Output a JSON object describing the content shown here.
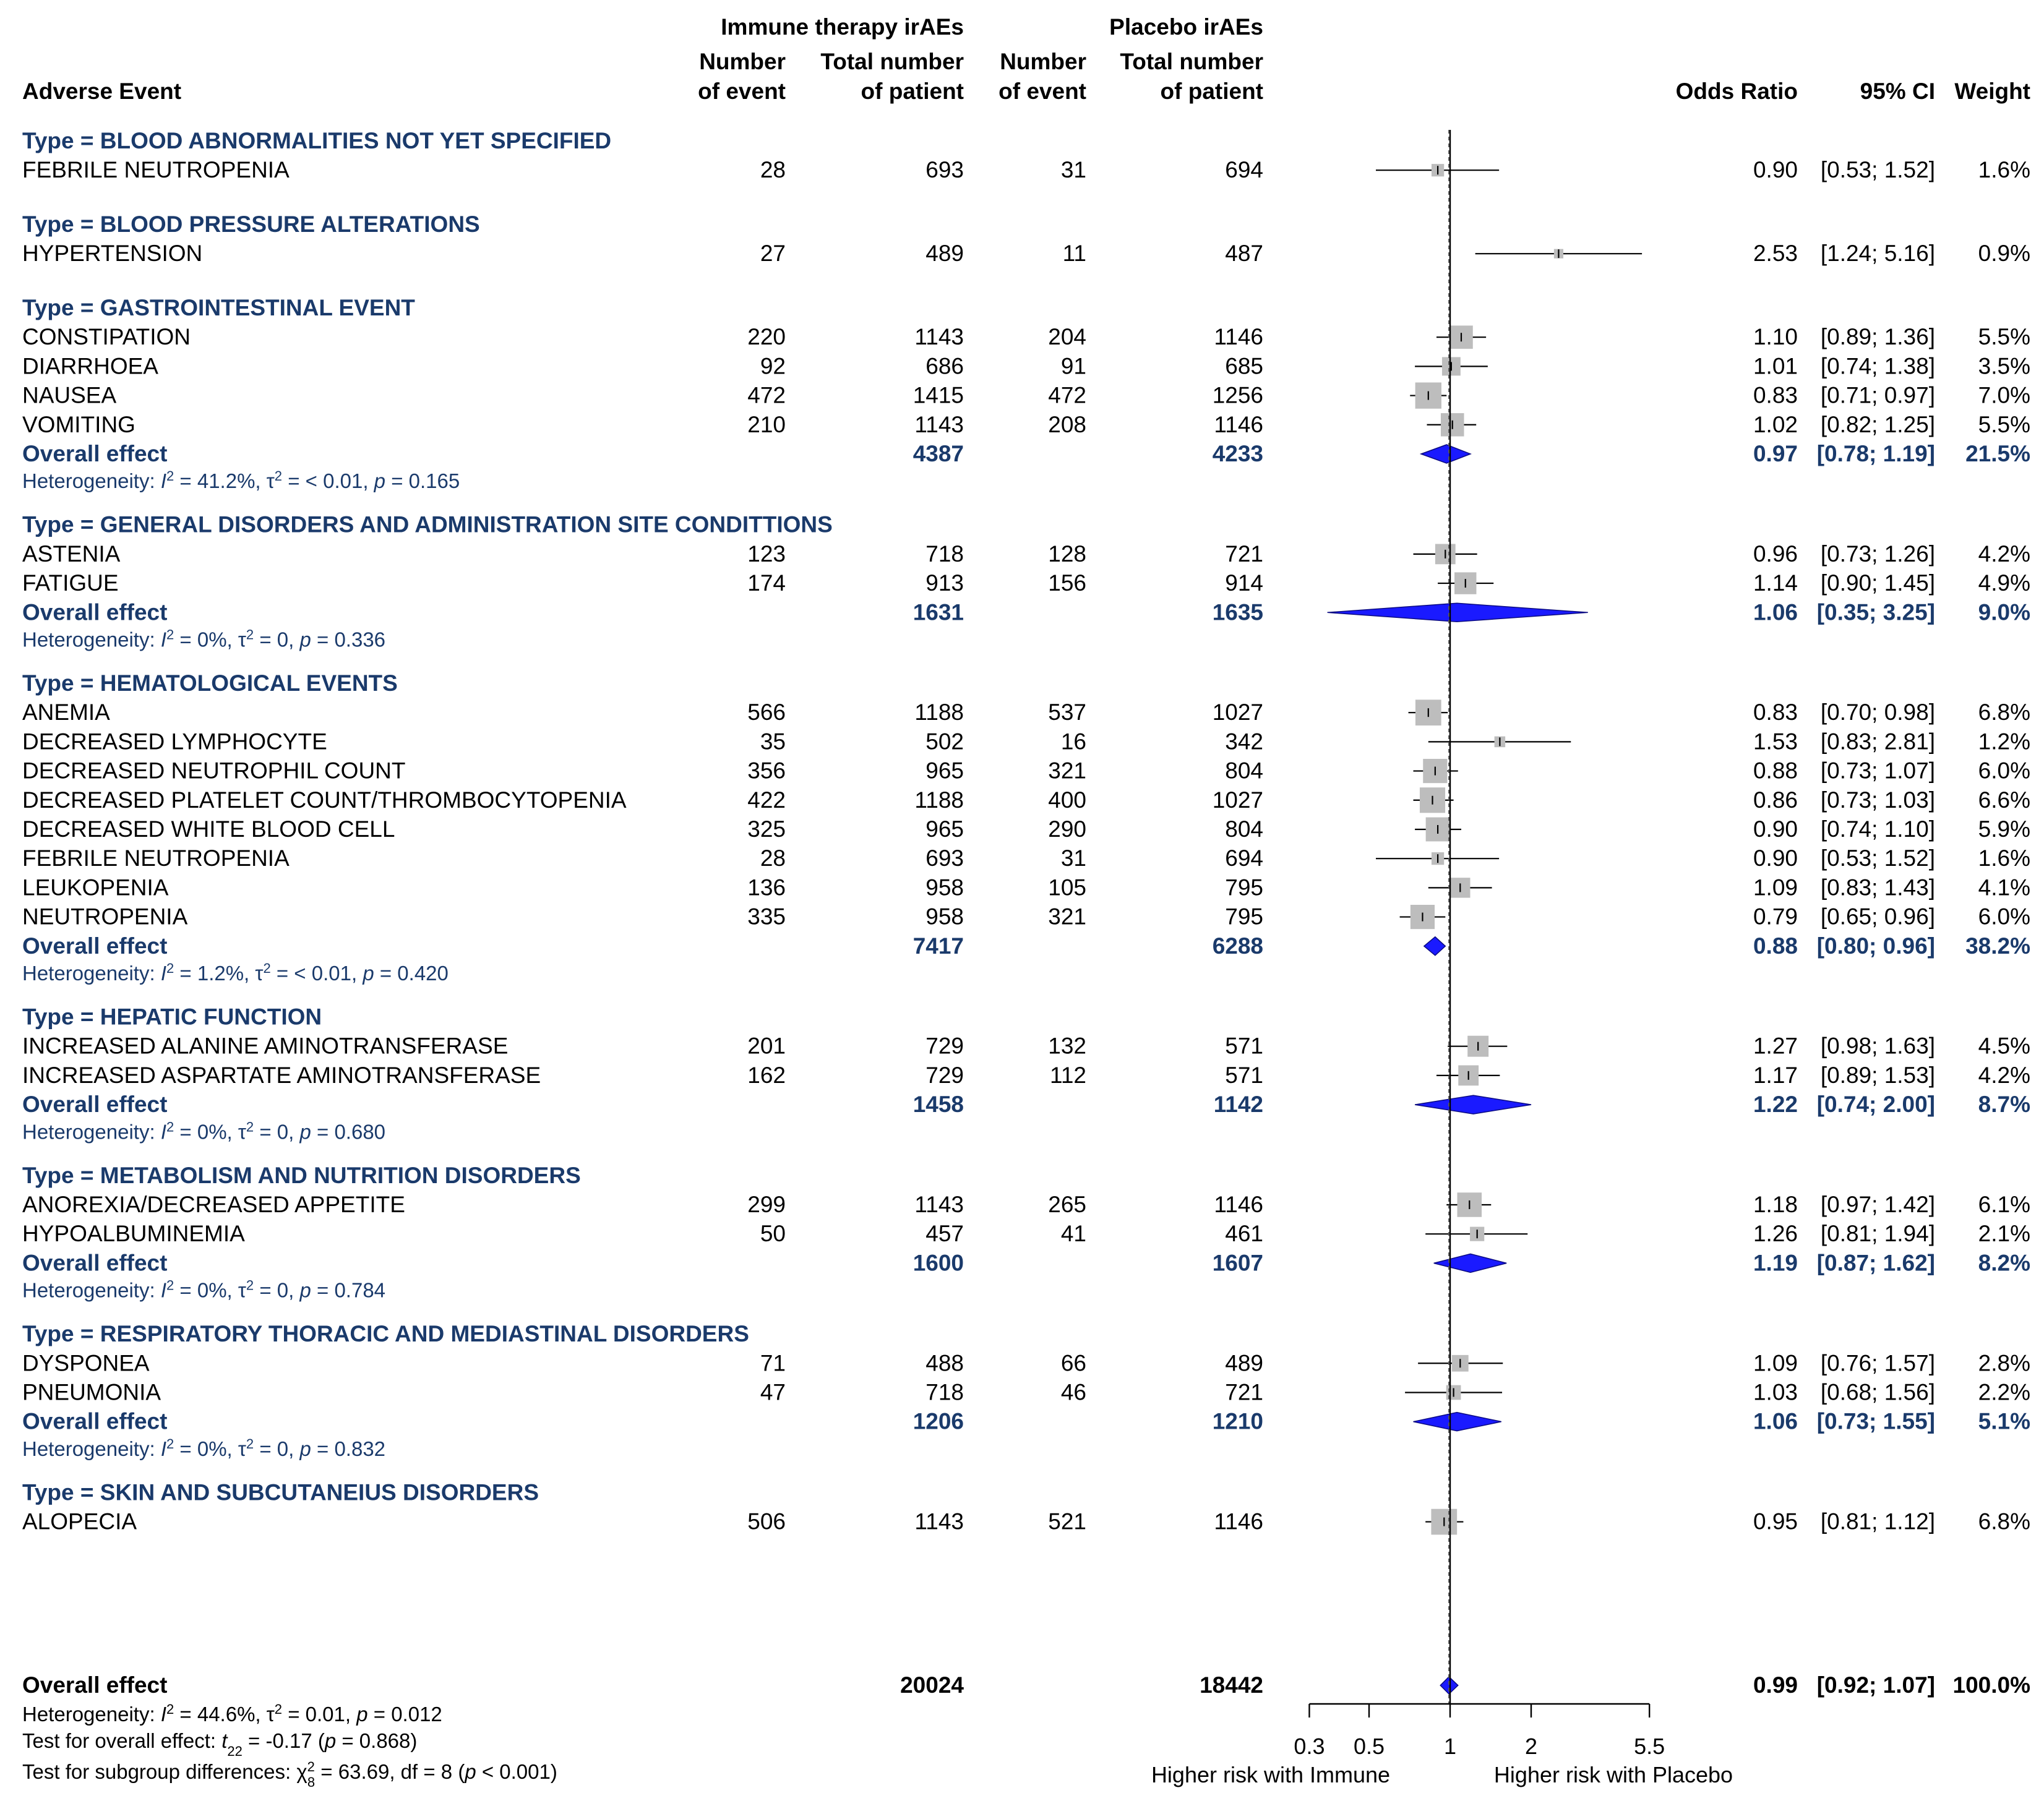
{
  "headers": {
    "adverse_event": "Adverse Event",
    "immune_group": "Immune therapy irAEs",
    "placebo_group": "Placebo irAEs",
    "num_event_1": "Number",
    "num_event_2": "of event",
    "total_1": "Total number",
    "total_2": "of patient",
    "odds_ratio": "Odds Ratio",
    "ci": "95% CI",
    "weight": "Weight"
  },
  "chart_data": {
    "type": "forest",
    "axis": {
      "scale": "log",
      "ticks": [
        "0.3",
        "0.5",
        "1",
        "2",
        "5.5"
      ],
      "tick_values": [
        0.3,
        0.5,
        1,
        2,
        5.5
      ],
      "left_label": "Higher risk with Immune",
      "right_label": "Higher risk with Placebo",
      "reference": 1,
      "overall_dashed_at": 0.99
    },
    "groups": [
      {
        "title": "Type = BLOOD ABNORMALITIES NOT YET SPECIFIED",
        "rows": [
          {
            "event": "FEBRILE NEUTROPENIA",
            "imm_n": "28",
            "imm_total": "693",
            "pla_n": "31",
            "pla_total": "694",
            "or": 0.9,
            "lo": 0.53,
            "hi": 1.52,
            "or_text": "0.90",
            "ci_text": "[0.53; 1.52]",
            "weight_text": "1.6%"
          }
        ]
      },
      {
        "title": "Type = BLOOD PRESSURE ALTERATIONS",
        "rows": [
          {
            "event": "HYPERTENSION",
            "imm_n": "27",
            "imm_total": "489",
            "pla_n": "11",
            "pla_total": "487",
            "or": 2.53,
            "lo": 1.24,
            "hi": 5.16,
            "or_text": "2.53",
            "ci_text": "[1.24; 5.16]",
            "weight_text": "0.9%"
          }
        ]
      },
      {
        "title": "Type = GASTROINTESTINAL EVENT",
        "rows": [
          {
            "event": "CONSTIPATION",
            "imm_n": "220",
            "imm_total": "1143",
            "pla_n": "204",
            "pla_total": "1146",
            "or": 1.1,
            "lo": 0.89,
            "hi": 1.36,
            "or_text": "1.10",
            "ci_text": "[0.89; 1.36]",
            "weight_text": "5.5%"
          },
          {
            "event": "DIARRHOEA",
            "imm_n": "92",
            "imm_total": "686",
            "pla_n": "91",
            "pla_total": "685",
            "or": 1.01,
            "lo": 0.74,
            "hi": 1.38,
            "or_text": "1.01",
            "ci_text": "[0.74; 1.38]",
            "weight_text": "3.5%"
          },
          {
            "event": "NAUSEA",
            "imm_n": "472",
            "imm_total": "1415",
            "pla_n": "472",
            "pla_total": "1256",
            "or": 0.83,
            "lo": 0.71,
            "hi": 0.97,
            "or_text": "0.83",
            "ci_text": "[0.71; 0.97]",
            "weight_text": "7.0%"
          },
          {
            "event": "VOMITING",
            "imm_n": "210",
            "imm_total": "1143",
            "pla_n": "208",
            "pla_total": "1146",
            "or": 1.02,
            "lo": 0.82,
            "hi": 1.25,
            "or_text": "1.02",
            "ci_text": "[0.82; 1.25]",
            "weight_text": "5.5%"
          }
        ],
        "overall": {
          "label": "Overall effect",
          "imm_total": "4387",
          "pla_total": "4233",
          "or": 0.97,
          "lo": 0.78,
          "hi": 1.19,
          "or_text": "0.97",
          "ci_text": "[0.78; 1.19]",
          "weight_text": "21.5%"
        },
        "het": {
          "prefix": "Heterogeneity: ",
          "I": "I",
          "sup": "2",
          "val1": " = 41.2%, ",
          "tau": "τ",
          "val2": " = < 0.01, ",
          "p": "p",
          "val3": " = 0.165"
        }
      },
      {
        "title": "Type = GENERAL DISORDERS AND ADMINISTRATION SITE CONDITTIONS",
        "rows": [
          {
            "event": "ASTENIA",
            "imm_n": "123",
            "imm_total": "718",
            "pla_n": "128",
            "pla_total": "721",
            "or": 0.96,
            "lo": 0.73,
            "hi": 1.26,
            "or_text": "0.96",
            "ci_text": "[0.73; 1.26]",
            "weight_text": "4.2%"
          },
          {
            "event": "FATIGUE",
            "imm_n": "174",
            "imm_total": "913",
            "pla_n": "156",
            "pla_total": "914",
            "or": 1.14,
            "lo": 0.9,
            "hi": 1.45,
            "or_text": "1.14",
            "ci_text": "[0.90; 1.45]",
            "weight_text": "4.9%"
          }
        ],
        "overall": {
          "label": "Overall effect",
          "imm_total": "1631",
          "pla_total": "1635",
          "or": 1.06,
          "lo": 0.35,
          "hi": 3.25,
          "or_text": "1.06",
          "ci_text": "[0.35; 3.25]",
          "weight_text": "9.0%"
        },
        "het": {
          "prefix": "Heterogeneity: ",
          "I": "I",
          "sup": "2",
          "val1": " = 0%, ",
          "tau": "τ",
          "val2": " = 0, ",
          "p": "p",
          "val3": " = 0.336"
        }
      },
      {
        "title": "Type = HEMATOLOGICAL EVENTS",
        "rows": [
          {
            "event": "ANEMIA",
            "imm_n": "566",
            "imm_total": "1188",
            "pla_n": "537",
            "pla_total": "1027",
            "or": 0.83,
            "lo": 0.7,
            "hi": 0.98,
            "or_text": "0.83",
            "ci_text": "[0.70; 0.98]",
            "weight_text": "6.8%"
          },
          {
            "event": "DECREASED LYMPHOCYTE",
            "imm_n": "35",
            "imm_total": "502",
            "pla_n": "16",
            "pla_total": "342",
            "or": 1.53,
            "lo": 0.83,
            "hi": 2.81,
            "or_text": "1.53",
            "ci_text": "[0.83; 2.81]",
            "weight_text": "1.2%"
          },
          {
            "event": "DECREASED NEUTROPHIL COUNT",
            "imm_n": "356",
            "imm_total": "965",
            "pla_n": "321",
            "pla_total": "804",
            "or": 0.88,
            "lo": 0.73,
            "hi": 1.07,
            "or_text": "0.88",
            "ci_text": "[0.73; 1.07]",
            "weight_text": "6.0%"
          },
          {
            "event": "DECREASED PLATELET COUNT/THROMBOCYTOPENIA",
            "imm_n": "422",
            "imm_total": "1188",
            "pla_n": "400",
            "pla_total": "1027",
            "or": 0.86,
            "lo": 0.73,
            "hi": 1.03,
            "or_text": "0.86",
            "ci_text": "[0.73; 1.03]",
            "weight_text": "6.6%"
          },
          {
            "event": "DECREASED WHITE BLOOD CELL",
            "imm_n": "325",
            "imm_total": "965",
            "pla_n": "290",
            "pla_total": "804",
            "or": 0.9,
            "lo": 0.74,
            "hi": 1.1,
            "or_text": "0.90",
            "ci_text": "[0.74; 1.10]",
            "weight_text": "5.9%"
          },
          {
            "event": "FEBRILE NEUTROPENIA",
            "imm_n": "28",
            "imm_total": "693",
            "pla_n": "31",
            "pla_total": "694",
            "or": 0.9,
            "lo": 0.53,
            "hi": 1.52,
            "or_text": "0.90",
            "ci_text": "[0.53; 1.52]",
            "weight_text": "1.6%"
          },
          {
            "event": "LEUKOPENIA",
            "imm_n": "136",
            "imm_total": "958",
            "pla_n": "105",
            "pla_total": "795",
            "or": 1.09,
            "lo": 0.83,
            "hi": 1.43,
            "or_text": "1.09",
            "ci_text": "[0.83; 1.43]",
            "weight_text": "4.1%"
          },
          {
            "event": "NEUTROPENIA",
            "imm_n": "335",
            "imm_total": "958",
            "pla_n": "321",
            "pla_total": "795",
            "or": 0.79,
            "lo": 0.65,
            "hi": 0.96,
            "or_text": "0.79",
            "ci_text": "[0.65; 0.96]",
            "weight_text": "6.0%"
          }
        ],
        "overall": {
          "label": "Overall effect",
          "imm_total": "7417",
          "pla_total": "6288",
          "or": 0.88,
          "lo": 0.8,
          "hi": 0.96,
          "or_text": "0.88",
          "ci_text": "[0.80; 0.96]",
          "weight_text": "38.2%"
        },
        "het": {
          "prefix": "Heterogeneity: ",
          "I": "I",
          "sup": "2",
          "val1": " = 1.2%, ",
          "tau": "τ",
          "val2": " = < 0.01, ",
          "p": "p",
          "val3": " = 0.420"
        }
      },
      {
        "title": "Type = HEPATIC FUNCTION",
        "rows": [
          {
            "event": "INCREASED ALANINE AMINOTRANSFERASE",
            "imm_n": "201",
            "imm_total": "729",
            "pla_n": "132",
            "pla_total": "571",
            "or": 1.27,
            "lo": 0.98,
            "hi": 1.63,
            "or_text": "1.27",
            "ci_text": "[0.98; 1.63]",
            "weight_text": "4.5%"
          },
          {
            "event": "INCREASED ASPARTATE AMINOTRANSFERASE",
            "imm_n": "162",
            "imm_total": "729",
            "pla_n": "112",
            "pla_total": "571",
            "or": 1.17,
            "lo": 0.89,
            "hi": 1.53,
            "or_text": "1.17",
            "ci_text": "[0.89; 1.53]",
            "weight_text": "4.2%"
          }
        ],
        "overall": {
          "label": "Overall effect",
          "imm_total": "1458",
          "pla_total": "1142",
          "or": 1.22,
          "lo": 0.74,
          "hi": 2.0,
          "or_text": "1.22",
          "ci_text": "[0.74; 2.00]",
          "weight_text": "8.7%"
        },
        "het": {
          "prefix": "Heterogeneity: ",
          "I": "I",
          "sup": "2",
          "val1": " = 0%, ",
          "tau": "τ",
          "val2": " = 0, ",
          "p": "p",
          "val3": " = 0.680"
        }
      },
      {
        "title": "Type = METABOLISM AND NUTRITION DISORDERS",
        "rows": [
          {
            "event": "ANOREXIA/DECREASED APPETITE",
            "imm_n": "299",
            "imm_total": "1143",
            "pla_n": "265",
            "pla_total": "1146",
            "or": 1.18,
            "lo": 0.97,
            "hi": 1.42,
            "or_text": "1.18",
            "ci_text": "[0.97; 1.42]",
            "weight_text": "6.1%"
          },
          {
            "event": "HYPOALBUMINEMIA",
            "imm_n": "50",
            "imm_total": "457",
            "pla_n": "41",
            "pla_total": "461",
            "or": 1.26,
            "lo": 0.81,
            "hi": 1.94,
            "or_text": "1.26",
            "ci_text": "[0.81; 1.94]",
            "weight_text": "2.1%"
          }
        ],
        "overall": {
          "label": "Overall effect",
          "imm_total": "1600",
          "pla_total": "1607",
          "or": 1.19,
          "lo": 0.87,
          "hi": 1.62,
          "or_text": "1.19",
          "ci_text": "[0.87; 1.62]",
          "weight_text": "8.2%"
        },
        "het": {
          "prefix": "Heterogeneity: ",
          "I": "I",
          "sup": "2",
          "val1": " = 0%, ",
          "tau": "τ",
          "val2": " = 0, ",
          "p": "p",
          "val3": " = 0.784"
        }
      },
      {
        "title": "Type = RESPIRATORY THORACIC AND MEDIASTINAL DISORDERS",
        "rows": [
          {
            "event": "DYSPONEA",
            "imm_n": "71",
            "imm_total": "488",
            "pla_n": "66",
            "pla_total": "489",
            "or": 1.09,
            "lo": 0.76,
            "hi": 1.57,
            "or_text": "1.09",
            "ci_text": "[0.76; 1.57]",
            "weight_text": "2.8%"
          },
          {
            "event": "PNEUMONIA",
            "imm_n": "47",
            "imm_total": "718",
            "pla_n": "46",
            "pla_total": "721",
            "or": 1.03,
            "lo": 0.68,
            "hi": 1.56,
            "or_text": "1.03",
            "ci_text": "[0.68; 1.56]",
            "weight_text": "2.2%"
          }
        ],
        "overall": {
          "label": "Overall effect",
          "imm_total": "1206",
          "pla_total": "1210",
          "or": 1.06,
          "lo": 0.73,
          "hi": 1.55,
          "or_text": "1.06",
          "ci_text": "[0.73; 1.55]",
          "weight_text": "5.1%"
        },
        "het": {
          "prefix": "Heterogeneity: ",
          "I": "I",
          "sup": "2",
          "val1": " = 0%, ",
          "tau": "τ",
          "val2": " = 0, ",
          "p": "p",
          "val3": " = 0.832"
        }
      },
      {
        "title": "Type = SKIN AND SUBCUTANEIUS DISORDERS",
        "rows": [
          {
            "event": "ALOPECIA",
            "imm_n": "506",
            "imm_total": "1143",
            "pla_n": "521",
            "pla_total": "1146",
            "or": 0.95,
            "lo": 0.81,
            "hi": 1.12,
            "or_text": "0.95",
            "ci_text": "[0.81; 1.12]",
            "weight_text": "6.8%"
          }
        ]
      }
    ],
    "overall": {
      "label": "Overall effect",
      "imm_total": "20024",
      "pla_total": "18442",
      "or": 0.99,
      "lo": 0.92,
      "hi": 1.07,
      "or_text": "0.99",
      "ci_text": "[0.92; 1.07]",
      "weight_text": "100.0%"
    },
    "footer": {
      "het": {
        "prefix": "Heterogeneity: ",
        "I": "I",
        "sup": "2",
        "val1": " = 44.6%, ",
        "tau": "τ",
        "val2": " = 0.01, ",
        "p": "p",
        "val3": " = 0.012"
      },
      "test_overall": {
        "prefix": "Test for overall effect: ",
        "t": "t",
        "sub": "22",
        "mid": " = -0.17 (",
        "p": "p",
        "end": " = 0.868)"
      },
      "test_subgroup": {
        "prefix": "Test for subgroup differences: ",
        "chi": "χ",
        "sup": "2",
        "sub": "8",
        "mid": " = 63.69, df = 8 (",
        "p": "p",
        "end": " < 0.001)"
      }
    }
  }
}
